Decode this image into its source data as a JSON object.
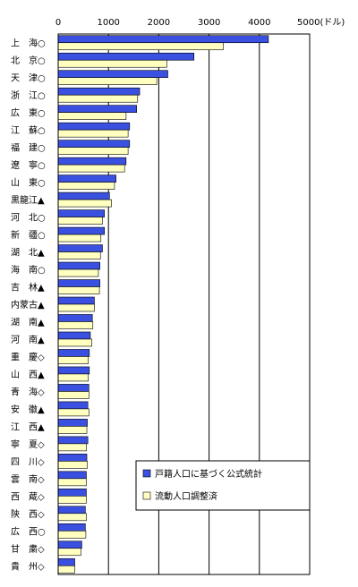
{
  "chart_data": {
    "type": "bar",
    "orientation": "horizontal",
    "xlim": [
      0,
      5000
    ],
    "x_ticks": [
      "0",
      "1000",
      "2000",
      "3000",
      "4000",
      "5000(ドル)"
    ],
    "categories": [
      "上　海○",
      "北　京○",
      "天　津○",
      "浙　江○",
      "広　東○",
      "江　蘇○",
      "福　建○",
      "遼　寧○",
      "山　東○",
      "黒龍江▲",
      "河　北○",
      "新　疆○",
      "湖　北▲",
      "海　南○",
      "吉　林▲",
      "内蒙古▲",
      "湖　南▲",
      "河　南▲",
      "重　慶◇",
      "山　西▲",
      "青　海◇",
      "安　徽▲",
      "江　西▲",
      "寧　夏◇",
      "四　川◇",
      "雲　南◇",
      "西　蔵◇",
      "陝　西◇",
      "広　西○",
      "甘　粛◇",
      "貴　州◇"
    ],
    "series": [
      {
        "name": "戸籍人口に基づく公式統計",
        "color": "#3a50e0",
        "values": [
          4180,
          2700,
          2180,
          1620,
          1560,
          1420,
          1420,
          1350,
          1150,
          1020,
          920,
          920,
          880,
          830,
          830,
          720,
          680,
          640,
          620,
          620,
          610,
          590,
          580,
          590,
          570,
          560,
          560,
          540,
          540,
          470,
          330
        ]
      },
      {
        "name": "流動人口調整済",
        "color": "#ffffc0",
        "values": [
          3280,
          2160,
          1960,
          1580,
          1350,
          1390,
          1390,
          1320,
          1120,
          1060,
          880,
          850,
          840,
          800,
          820,
          720,
          690,
          670,
          600,
          600,
          610,
          610,
          570,
          560,
          580,
          560,
          560,
          560,
          550,
          450,
          330
        ]
      }
    ],
    "grid": true,
    "legend_position": "bottom-right"
  }
}
